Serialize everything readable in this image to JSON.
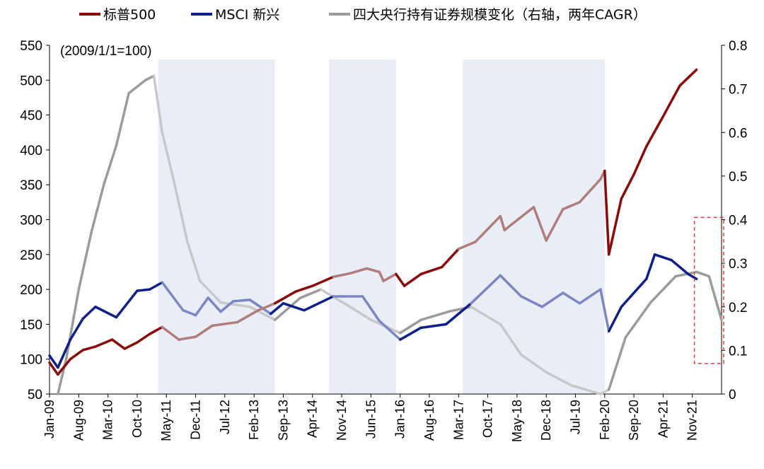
{
  "chart_data": {
    "type": "line",
    "note": "(2009/1/1=100)",
    "left_axis": {
      "min": 50,
      "max": 550,
      "ticks": [
        50,
        100,
        150,
        200,
        250,
        300,
        350,
        400,
        450,
        500,
        550
      ]
    },
    "right_axis": {
      "min": 0,
      "max": 0.8,
      "ticks": [
        "0",
        "0.1",
        "0.2",
        "0.3",
        "0.4",
        "0.5",
        "0.6",
        "0.7",
        "0.8"
      ]
    },
    "x_tick_labels": [
      "Jan-09",
      "Aug-09",
      "Mar-10",
      "Oct-10",
      "May-11",
      "Dec-11",
      "Jul-12",
      "Feb-13",
      "Sep-13",
      "Apr-14",
      "Nov-14",
      "Jun-15",
      "Jan-16",
      "Aug-16",
      "Mar-17",
      "Oct-17",
      "May-18",
      "Dec-18",
      "Jul-19",
      "Feb-20",
      "Sep-20",
      "Apr-21",
      "Nov-21"
    ],
    "x_range": [
      "2009-01",
      "2022-06"
    ],
    "shaded_periods": [
      {
        "start": "2011-03",
        "end": "2013-07"
      },
      {
        "start": "2014-08",
        "end": "2015-12"
      },
      {
        "start": "2017-04",
        "end": "2020-02"
      }
    ],
    "highlight_box": {
      "start": "2021-12",
      "end": "2022-06",
      "right_min": 0.07,
      "right_max": 0.405,
      "color": "#e8393b"
    },
    "series": [
      {
        "name": "标普500",
        "axis": "left",
        "color": "#8b0a0a",
        "shade_color": "#b07c7c",
        "points": [
          [
            "2009-01",
            95
          ],
          [
            "2009-03",
            78
          ],
          [
            "2009-06",
            100
          ],
          [
            "2009-09",
            113
          ],
          [
            "2009-12",
            118
          ],
          [
            "2010-04",
            128
          ],
          [
            "2010-07",
            115
          ],
          [
            "2010-10",
            124
          ],
          [
            "2011-01",
            136
          ],
          [
            "2011-04",
            146
          ],
          [
            "2011-08",
            128
          ],
          [
            "2011-12",
            132
          ],
          [
            "2012-04",
            148
          ],
          [
            "2012-10",
            153
          ],
          [
            "2013-03",
            170
          ],
          [
            "2013-07",
            180
          ],
          [
            "2013-12",
            197
          ],
          [
            "2014-04",
            205
          ],
          [
            "2014-09",
            218
          ],
          [
            "2015-01",
            223
          ],
          [
            "2015-05",
            230
          ],
          [
            "2015-08",
            225
          ],
          [
            "2015-09",
            212
          ],
          [
            "2015-12",
            222
          ],
          [
            "2016-02",
            205
          ],
          [
            "2016-06",
            222
          ],
          [
            "2016-11",
            232
          ],
          [
            "2017-03",
            258
          ],
          [
            "2017-07",
            268
          ],
          [
            "2018-01",
            305
          ],
          [
            "2018-02",
            285
          ],
          [
            "2018-09",
            318
          ],
          [
            "2018-12",
            270
          ],
          [
            "2019-04",
            315
          ],
          [
            "2019-08",
            325
          ],
          [
            "2020-01",
            358
          ],
          [
            "2020-02",
            370
          ],
          [
            "2020-03",
            250
          ],
          [
            "2020-06",
            330
          ],
          [
            "2020-09",
            365
          ],
          [
            "2020-12",
            405
          ],
          [
            "2021-04",
            448
          ],
          [
            "2021-08",
            492
          ],
          [
            "2021-12",
            515
          ]
        ]
      },
      {
        "name": "MSCI 新兴",
        "axis": "left",
        "color": "#0f1f8a",
        "shade_color": "#7c86c4",
        "points": [
          [
            "2009-01",
            105
          ],
          [
            "2009-03",
            88
          ],
          [
            "2009-06",
            128
          ],
          [
            "2009-09",
            158
          ],
          [
            "2009-12",
            175
          ],
          [
            "2010-05",
            160
          ],
          [
            "2010-10",
            198
          ],
          [
            "2011-01",
            200
          ],
          [
            "2011-04",
            210
          ],
          [
            "2011-09",
            170
          ],
          [
            "2011-12",
            163
          ],
          [
            "2012-03",
            188
          ],
          [
            "2012-06",
            168
          ],
          [
            "2012-09",
            183
          ],
          [
            "2013-01",
            185
          ],
          [
            "2013-06",
            165
          ],
          [
            "2013-09",
            180
          ],
          [
            "2014-02",
            170
          ],
          [
            "2014-09",
            190
          ],
          [
            "2015-04",
            190
          ],
          [
            "2015-08",
            155
          ],
          [
            "2016-01",
            128
          ],
          [
            "2016-06",
            145
          ],
          [
            "2016-12",
            150
          ],
          [
            "2017-06",
            180
          ],
          [
            "2018-01",
            220
          ],
          [
            "2018-06",
            190
          ],
          [
            "2018-11",
            175
          ],
          [
            "2019-04",
            195
          ],
          [
            "2019-08",
            180
          ],
          [
            "2020-01",
            200
          ],
          [
            "2020-03",
            140
          ],
          [
            "2020-06",
            175
          ],
          [
            "2020-12",
            215
          ],
          [
            "2021-02",
            250
          ],
          [
            "2021-06",
            242
          ],
          [
            "2021-10",
            222
          ],
          [
            "2021-12",
            215
          ]
        ]
      },
      {
        "name": "四大央行持有证券规模变化（右轴，两年CAGR）",
        "axis": "right",
        "color": "#9b9b9b",
        "shade_color": "#c8c8c8",
        "points": [
          [
            "2009-03",
            0.0
          ],
          [
            "2009-05",
            0.08
          ],
          [
            "2009-08",
            0.24
          ],
          [
            "2009-11",
            0.37
          ],
          [
            "2010-02",
            0.48
          ],
          [
            "2010-05",
            0.57
          ],
          [
            "2010-08",
            0.69
          ],
          [
            "2010-12",
            0.72
          ],
          [
            "2011-02",
            0.73
          ],
          [
            "2011-04",
            0.6
          ],
          [
            "2011-07",
            0.48
          ],
          [
            "2011-10",
            0.35
          ],
          [
            "2012-01",
            0.26
          ],
          [
            "2012-06",
            0.21
          ],
          [
            "2013-01",
            0.2
          ],
          [
            "2013-07",
            0.17
          ],
          [
            "2014-01",
            0.22
          ],
          [
            "2014-06",
            0.24
          ],
          [
            "2015-01",
            0.2
          ],
          [
            "2015-06",
            0.17
          ],
          [
            "2016-01",
            0.14
          ],
          [
            "2016-06",
            0.17
          ],
          [
            "2017-01",
            0.19
          ],
          [
            "2017-06",
            0.2
          ],
          [
            "2018-01",
            0.16
          ],
          [
            "2018-06",
            0.09
          ],
          [
            "2018-12",
            0.05
          ],
          [
            "2019-06",
            0.02
          ],
          [
            "2020-01",
            0.0
          ],
          [
            "2020-03",
            0.01
          ],
          [
            "2020-07",
            0.13
          ],
          [
            "2021-01",
            0.21
          ],
          [
            "2021-07",
            0.27
          ],
          [
            "2021-12",
            0.28
          ],
          [
            "2022-03",
            0.27
          ],
          [
            "2022-06",
            0.17
          ]
        ]
      }
    ]
  }
}
